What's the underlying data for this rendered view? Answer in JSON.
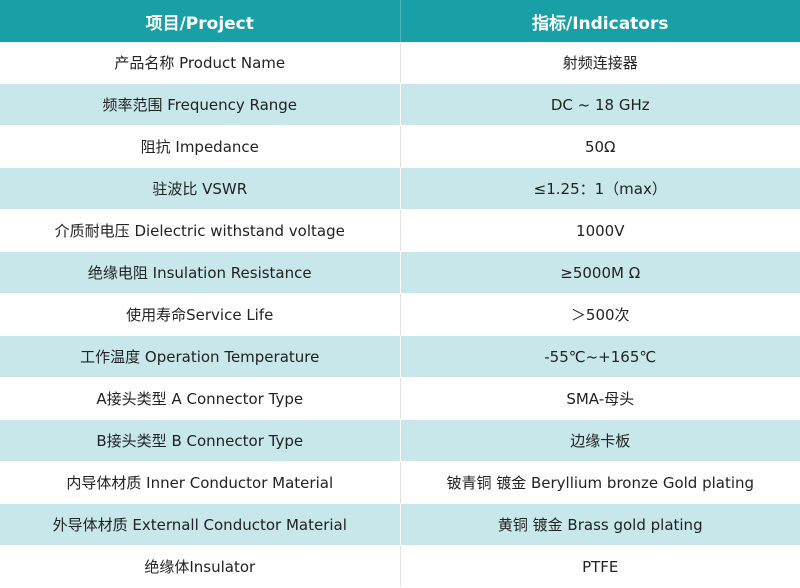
{
  "header": {
    "project": "项目/Project",
    "indicators": "指标/Indicators"
  },
  "rows": [
    {
      "param": "产品名称 Product Name",
      "value": "射频连接器"
    },
    {
      "param": "频率范围 Frequency Range",
      "value": "DC ~ 18 GHz"
    },
    {
      "param": "阻抗 Impedance",
      "value": "50Ω"
    },
    {
      "param": "驻波比 VSWR",
      "value": "≤1.25：1（max）"
    },
    {
      "param": "介质耐电压 Dielectric withstand voltage",
      "value": "1000V"
    },
    {
      "param": "绝缘电阻 Insulation Resistance",
      "value": "≥5000M Ω"
    },
    {
      "param": "使用寿命Service Life",
      "value": "＞500次"
    },
    {
      "param": "工作温度 Operation Temperature",
      "value": "-55℃~+165℃"
    },
    {
      "param": "A接头类型 A Connector Type",
      "value": "SMA-母头"
    },
    {
      "param": "B接头类型 B Connector Type",
      "value": "边缘卡板"
    },
    {
      "param": "内导体材质 Inner Conductor Material",
      "value": "铍青铜 镀金 Beryllium bronze Gold plating"
    },
    {
      "param": "外导体材质 Externall Conductor Material",
      "value": "黄铜 镀金 Brass gold plating"
    },
    {
      "param": "绝缘体Insulator",
      "value": "PTFE"
    }
  ]
}
